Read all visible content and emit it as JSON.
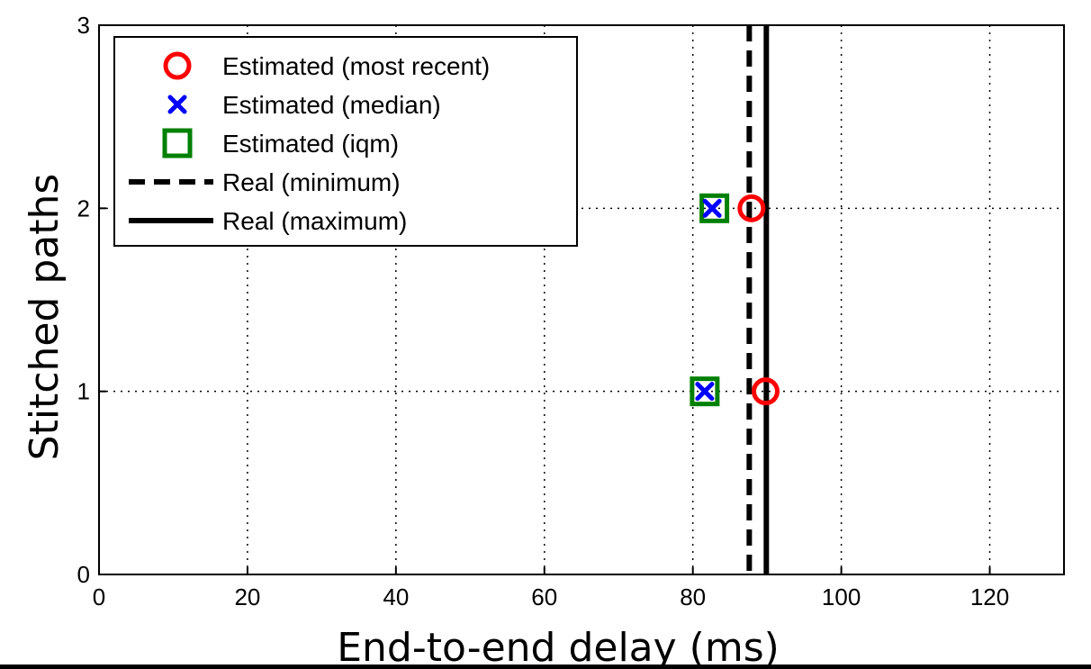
{
  "chart_data": {
    "type": "scatter",
    "xlabel": "End-to-end delay (ms)",
    "ylabel": "Stitched paths",
    "xlim": [
      0,
      130
    ],
    "ylim": [
      0,
      3
    ],
    "xticks": [
      0,
      20,
      40,
      60,
      80,
      100,
      120
    ],
    "yticks": [
      0,
      1,
      2,
      3
    ],
    "grid": true,
    "legend_position": "top-left",
    "series": [
      {
        "name": "Estimated (most recent)",
        "marker": "circle",
        "color": "#ff0000",
        "points": [
          {
            "x": 89.8,
            "y": 1
          },
          {
            "x": 87.9,
            "y": 2
          }
        ]
      },
      {
        "name": "Estimated (median)",
        "marker": "x",
        "color": "#0000ff",
        "points": [
          {
            "x": 81.6,
            "y": 1
          },
          {
            "x": 82.6,
            "y": 2
          }
        ]
      },
      {
        "name": "Estimated (iqm)",
        "marker": "square",
        "color": "#008000",
        "points": [
          {
            "x": 81.6,
            "y": 1
          },
          {
            "x": 82.9,
            "y": 2
          }
        ]
      }
    ],
    "vlines": [
      {
        "name": "Real (minimum)",
        "x": 87.6,
        "style": "dashed",
        "color": "#000000"
      },
      {
        "name": "Real (maximum)",
        "x": 89.9,
        "style": "solid",
        "color": "#000000"
      }
    ]
  }
}
